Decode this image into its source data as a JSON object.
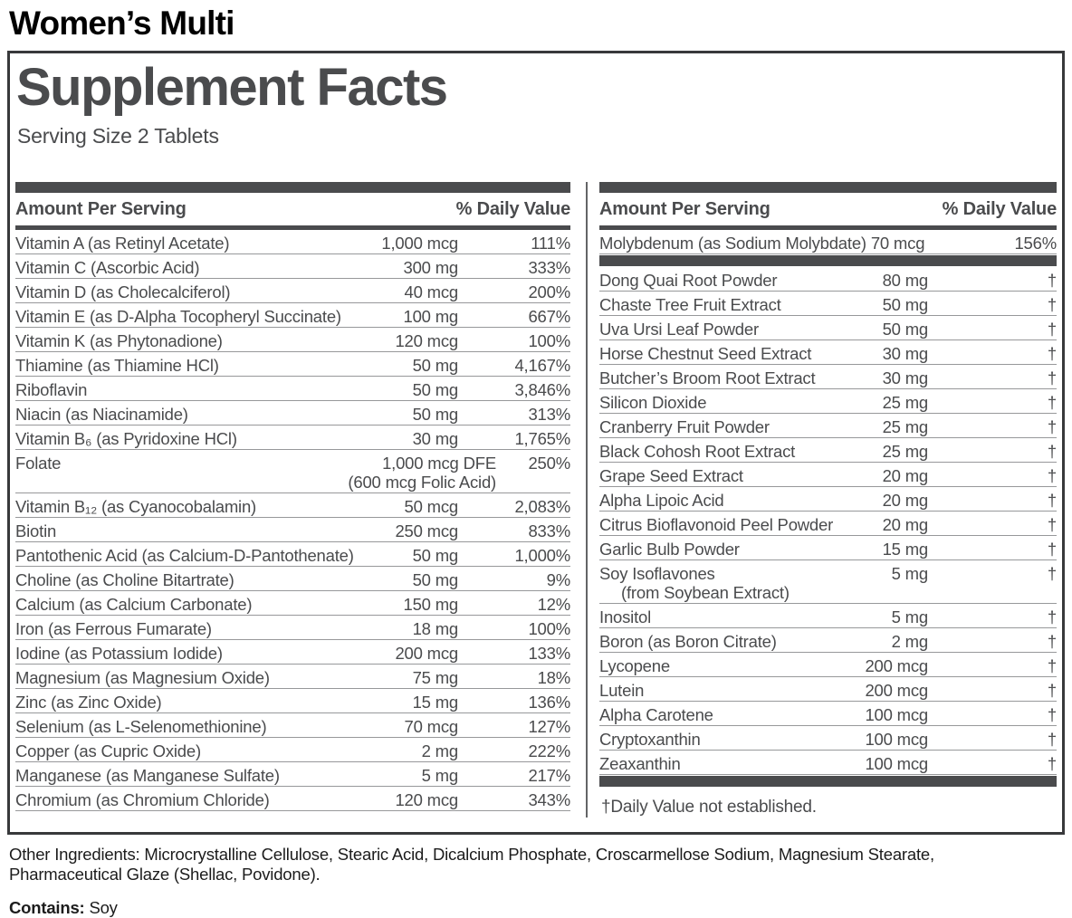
{
  "title": "Women’s Multi",
  "panel": {
    "heading": "Supplement Facts",
    "serving_size": "Serving Size 2 Tablets",
    "column_headers": {
      "amount": "Amount Per Serving",
      "daily_value": "% Daily Value"
    },
    "left_rows": [
      {
        "name": "Vitamin A (as Retinyl Acetate)",
        "amount": "1,000 mcg",
        "dv": "111%"
      },
      {
        "name": "Vitamin C (Ascorbic Acid)",
        "amount": "300 mg",
        "dv": "333%"
      },
      {
        "name": "Vitamin D (as Cholecalciferol)",
        "amount": "40 mcg",
        "dv": "200%"
      },
      {
        "name": "Vitamin E (as D-Alpha Tocopheryl Succinate)",
        "amount": "100 mg",
        "dv": "667%"
      },
      {
        "name": "Vitamin K (as Phytonadione)",
        "amount": "120 mcg",
        "dv": "100%"
      },
      {
        "name": "Thiamine (as Thiamine HCl)",
        "amount": "50 mg",
        "dv": "4,167%"
      },
      {
        "name": "Riboflavin",
        "amount": "50 mg",
        "dv": "3,846%"
      },
      {
        "name": "Niacin (as Niacinamide)",
        "amount": "50 mg",
        "dv": "313%"
      },
      {
        "name": "Vitamin B₆ (as Pyridoxine HCl)",
        "amount": "30 mg",
        "dv": "1,765%"
      },
      {
        "name": "Folate",
        "amount": "1,000 mcg DFE",
        "amount2": "(600 mcg Folic Acid)",
        "dv": "250%"
      },
      {
        "name": "Vitamin B₁₂ (as Cyanocobalamin)",
        "amount": "50 mcg",
        "dv": "2,083%"
      },
      {
        "name": "Biotin",
        "amount": "250 mcg",
        "dv": "833%"
      },
      {
        "name": "Pantothenic Acid (as Calcium-D-Pantothenate)",
        "amount": "50 mg",
        "dv": "1,000%"
      },
      {
        "name": "Choline (as Choline Bitartrate)",
        "amount": "50 mg",
        "dv": "9%"
      },
      {
        "name": "Calcium (as Calcium Carbonate)",
        "amount": "150 mg",
        "dv": "12%"
      },
      {
        "name": "Iron (as Ferrous Fumarate)",
        "amount": "18 mg",
        "dv": "100%"
      },
      {
        "name": "Iodine (as Potassium Iodide)",
        "amount": "200 mcg",
        "dv": "133%"
      },
      {
        "name": "Magnesium (as Magnesium Oxide)",
        "amount": "75 mg",
        "dv": "18%"
      },
      {
        "name": "Zinc (as Zinc Oxide)",
        "amount": "15 mg",
        "dv": "136%"
      },
      {
        "name": "Selenium (as L-Selenomethionine)",
        "amount": "70 mcg",
        "dv": "127%"
      },
      {
        "name": "Copper (as Cupric Oxide)",
        "amount": "2 mg",
        "dv": "222%"
      },
      {
        "name": "Manganese (as Manganese Sulfate)",
        "amount": "5 mg",
        "dv": "217%"
      },
      {
        "name": "Chromium (as Chromium Chloride)",
        "amount": "120 mcg",
        "dv": "343%"
      }
    ],
    "right_top_rows": [
      {
        "name": "Molybdenum (as Sodium Molybdate) 70 mcg",
        "dv": "156%"
      }
    ],
    "right_rows": [
      {
        "name": "Dong Quai Root Powder",
        "amount": "80 mg",
        "dv": "†"
      },
      {
        "name": "Chaste Tree Fruit Extract",
        "amount": "50 mg",
        "dv": "†"
      },
      {
        "name": "Uva Ursi Leaf Powder",
        "amount": "50 mg",
        "dv": "†"
      },
      {
        "name": "Horse Chestnut Seed Extract",
        "amount": "30 mg",
        "dv": "†"
      },
      {
        "name": "Butcher’s Broom Root Extract",
        "amount": "30 mg",
        "dv": "†"
      },
      {
        "name": "Silicon Dioxide",
        "amount": "25 mg",
        "dv": "†"
      },
      {
        "name": "Cranberry Fruit Powder",
        "amount": "25 mg",
        "dv": "†"
      },
      {
        "name": "Black Cohosh Root Extract",
        "amount": "25 mg",
        "dv": "†"
      },
      {
        "name": "Grape Seed Extract",
        "amount": "20 mg",
        "dv": "†"
      },
      {
        "name": "Alpha Lipoic Acid",
        "amount": "20 mg",
        "dv": "†"
      },
      {
        "name": "Citrus Bioflavonoid Peel Powder",
        "amount": "20 mg",
        "dv": "†"
      },
      {
        "name": "Garlic Bulb Powder",
        "amount": "15 mg",
        "dv": "†"
      },
      {
        "name": "Soy Isoflavones",
        "name2": "(from Soybean Extract)",
        "amount": "5 mg",
        "dv": "†"
      },
      {
        "name": "Inositol",
        "amount": "5 mg",
        "dv": "†"
      },
      {
        "name": "Boron (as Boron Citrate)",
        "amount": "2 mg",
        "dv": "†"
      },
      {
        "name": "Lycopene",
        "amount": "200 mcg",
        "dv": "†"
      },
      {
        "name": "Lutein",
        "amount": "200 mcg",
        "dv": "†"
      },
      {
        "name": "Alpha Carotene",
        "amount": "100 mcg",
        "dv": "†"
      },
      {
        "name": "Cryptoxanthin",
        "amount": "100 mcg",
        "dv": "†"
      },
      {
        "name": "Zeaxanthin",
        "amount": "100 mcg",
        "dv": "†"
      }
    ],
    "footnote": "†Daily Value not established."
  },
  "footer": {
    "other_ingredients_label": "Other Ingredients:",
    "other_ingredients_text": " Microcrystalline Cellulose, Stearic Acid, Dicalcium Phosphate, Croscarmellose Sodium, Magnesium Stearate, Pharmaceutical Glaze (Shellac, Povidone).",
    "contains_label": "Contains:",
    "contains_text": " Soy"
  },
  "colors": {
    "ink_gray": "#4a4b4d",
    "bar_gray": "#4a4b4d",
    "rule_gray": "#97989a",
    "divider_gray": "#636466",
    "text_black": "#000000",
    "background": "#ffffff"
  }
}
